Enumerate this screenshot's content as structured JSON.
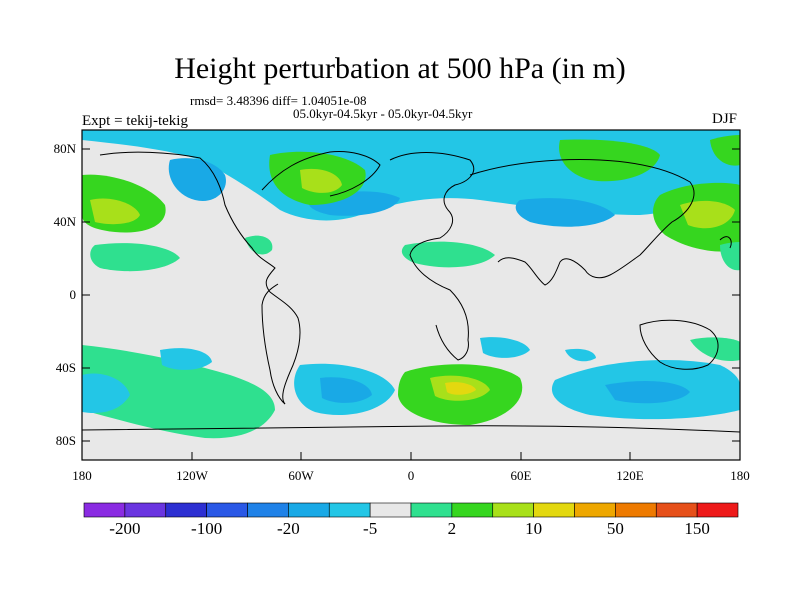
{
  "title": "Height perturbation at 500 hPa (in m)",
  "stats": "rmsd= 3.48396 diff= 1.04051e-08",
  "period": "05.0kyr-04.5kyr - 05.0kyr-04.5kyr",
  "experiment": "Expt = tekij-tekig",
  "season": "DJF",
  "lat_ticks": [
    "80N",
    "40N",
    "0",
    "40S",
    "80S"
  ],
  "lon_ticks": [
    "180",
    "120W",
    "60W",
    "0",
    "60E",
    "120E",
    "180"
  ],
  "colorbar": {
    "colors": [
      "#8a2be2",
      "#6a35e0",
      "#2d2fd2",
      "#2a58e6",
      "#1f82e8",
      "#19a9e6",
      "#23c6e6",
      "#e8e8e8",
      "#2fe08f",
      "#36d61f",
      "#a8e01a",
      "#e3d80f",
      "#eea700",
      "#ee7a00",
      "#e6501a",
      "#ee1a1a"
    ],
    "labels": [
      "-200",
      "-100",
      "-20",
      "-5",
      "2",
      "10",
      "50",
      "150"
    ]
  }
}
